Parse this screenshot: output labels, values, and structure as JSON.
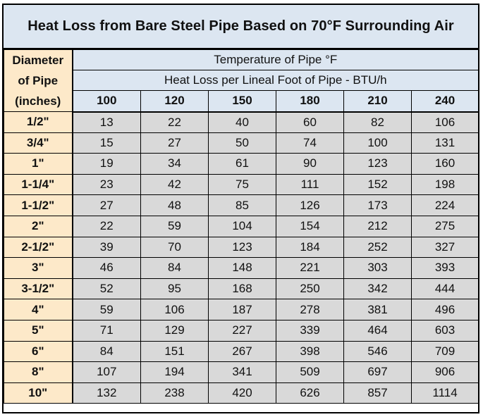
{
  "title": "Heat Loss from Bare Steel Pipe Based on 70°F Surrounding Air",
  "diameter_header": [
    "Diameter",
    "of Pipe",
    "(inches)"
  ],
  "temp_header": "Temperature of Pipe  °F",
  "heatloss_header": "Heat Loss per Lineal Foot of Pipe - BTU/h",
  "temperatures": [
    "100",
    "120",
    "150",
    "180",
    "210",
    "240"
  ],
  "rows": [
    {
      "size": "1/2\"",
      "values": [
        "13",
        "22",
        "40",
        "60",
        "82",
        "106"
      ]
    },
    {
      "size": "3/4\"",
      "values": [
        "15",
        "27",
        "50",
        "74",
        "100",
        "131"
      ]
    },
    {
      "size": "1\"",
      "values": [
        "19",
        "34",
        "61",
        "90",
        "123",
        "160"
      ]
    },
    {
      "size": "1-1/4\"",
      "values": [
        "23",
        "42",
        "75",
        "111",
        "152",
        "198"
      ]
    },
    {
      "size": "1-1/2\"",
      "values": [
        "27",
        "48",
        "85",
        "126",
        "173",
        "224"
      ]
    },
    {
      "size": "2\"",
      "values": [
        "22",
        "59",
        "104",
        "154",
        "212",
        "275"
      ]
    },
    {
      "size": "2-1/2\"",
      "values": [
        "39",
        "70",
        "123",
        "184",
        "252",
        "327"
      ]
    },
    {
      "size": "3\"",
      "values": [
        "46",
        "84",
        "148",
        "221",
        "303",
        "393"
      ]
    },
    {
      "size": "3-1/2\"",
      "values": [
        "52",
        "95",
        "168",
        "250",
        "342",
        "444"
      ]
    },
    {
      "size": "4\"",
      "values": [
        "59",
        "106",
        "187",
        "278",
        "381",
        "496"
      ]
    },
    {
      "size": "5\"",
      "values": [
        "71",
        "129",
        "227",
        "339",
        "464",
        "603"
      ]
    },
    {
      "size": "6\"",
      "values": [
        "84",
        "151",
        "267",
        "398",
        "546",
        "709"
      ]
    },
    {
      "size": "8\"",
      "values": [
        "107",
        "194",
        "341",
        "509",
        "697",
        "906"
      ]
    },
    {
      "size": "10\"",
      "values": [
        "132",
        "238",
        "420",
        "626",
        "857",
        "1114"
      ]
    }
  ],
  "colors": {
    "header_blue": "#dce6f1",
    "row_label_tan": "#fde9c9",
    "value_gray": "#d9d9d9"
  }
}
